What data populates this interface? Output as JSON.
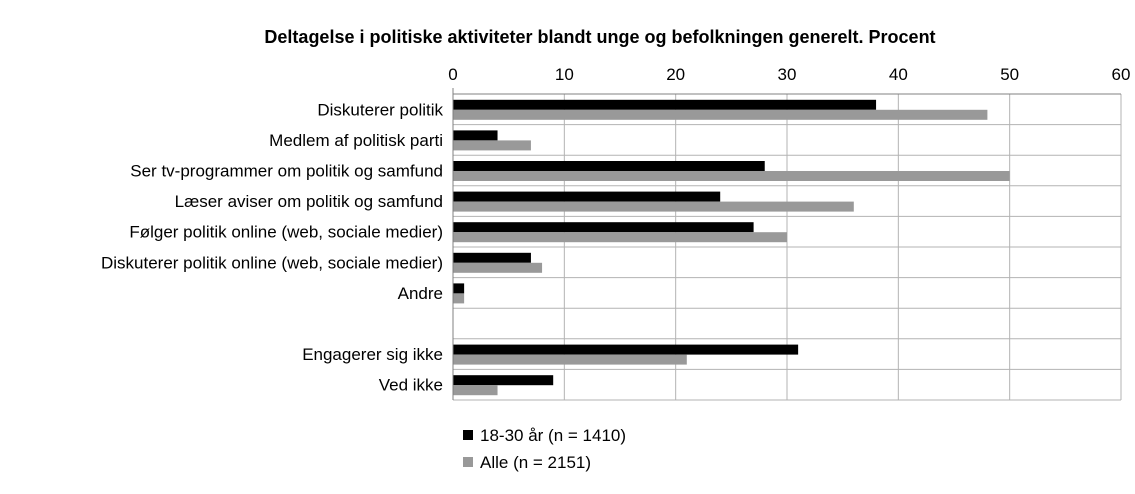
{
  "chart_data": {
    "type": "bar",
    "orientation": "horizontal",
    "title": "Deltagelse i politiske aktiviteter blandt unge og befolkningen generelt. Procent",
    "categories": [
      "Diskuterer politik",
      "Medlem af politisk parti",
      "Ser tv-programmer om politik og samfund",
      "Læser aviser om politik og samfund",
      "Følger politik online (web, sociale medier)",
      "Diskuterer politik online (web, sociale medier)",
      "Andre",
      "",
      "Engagerer sig ikke",
      "Ved ikke"
    ],
    "series": [
      {
        "name": "18-30 år (n = 1410)",
        "color": "#000000",
        "values": [
          38,
          4,
          28,
          24,
          27,
          7,
          1,
          null,
          31,
          9
        ]
      },
      {
        "name": "Alle (n = 2151)",
        "color": "#999999",
        "values": [
          48,
          7,
          50,
          36,
          30,
          8,
          1,
          null,
          21,
          4
        ]
      }
    ],
    "xlim": [
      0,
      60
    ],
    "xticks": [
      0,
      10,
      20,
      30,
      40,
      50,
      60
    ],
    "xaxis_position": "top",
    "grid": true,
    "legend_position": "bottom-left"
  }
}
